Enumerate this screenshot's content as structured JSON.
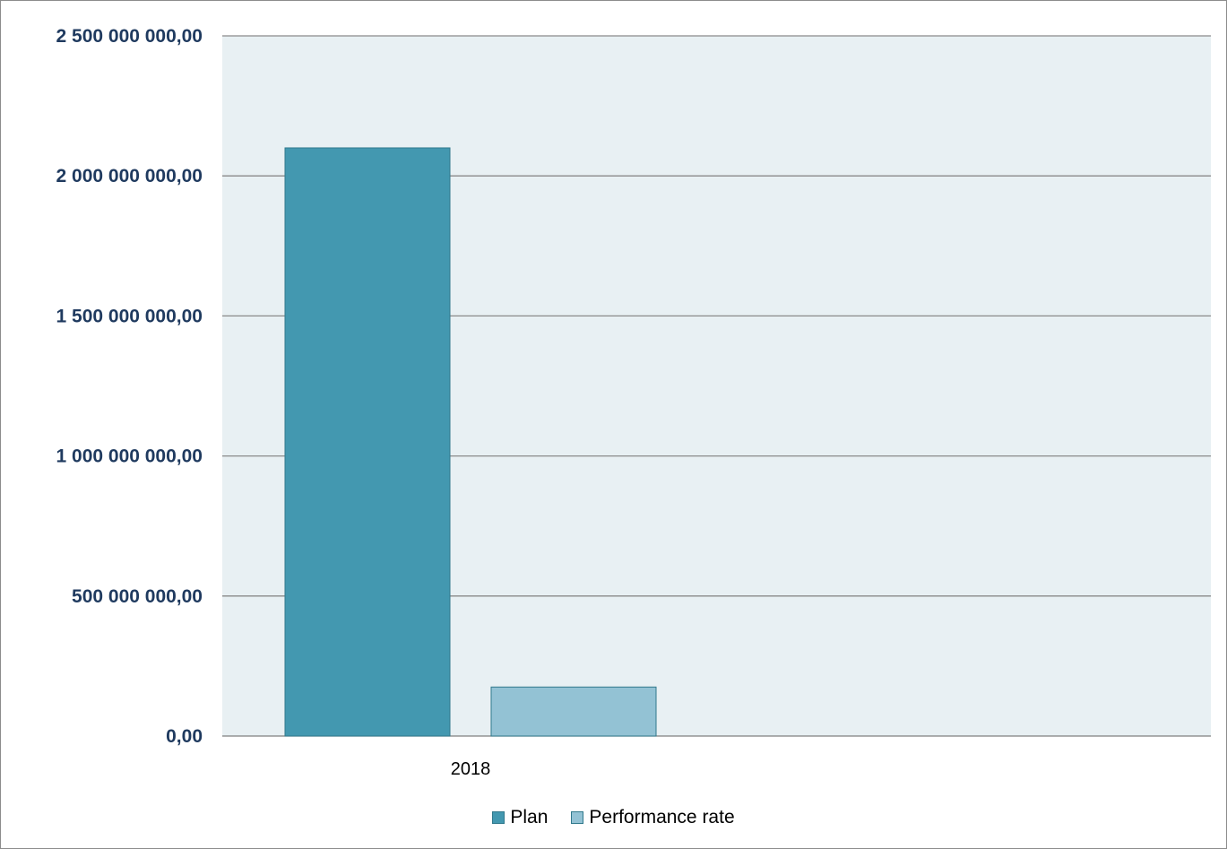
{
  "chart_data": {
    "type": "bar",
    "categories": [
      "2018"
    ],
    "series": [
      {
        "name": "Plan",
        "values": [
          2100000000
        ],
        "color": "#4398b0"
      },
      {
        "name": "Performance rate",
        "values": [
          175000000
        ],
        "color": "#93c2d4"
      }
    ],
    "ylim": [
      0,
      2500000000
    ],
    "yticks": [
      0,
      500000000,
      1000000000,
      1500000000,
      2000000000,
      2500000000
    ],
    "ytick_labels": [
      "0,00",
      "500 000 000,00",
      "1 000 000 000,00",
      "1 500 000 000,00",
      "2 000 000 000,00",
      "2 500 000 000,00"
    ],
    "grid": true,
    "legend": "bottom",
    "plot_background": "#e8f0f3"
  }
}
